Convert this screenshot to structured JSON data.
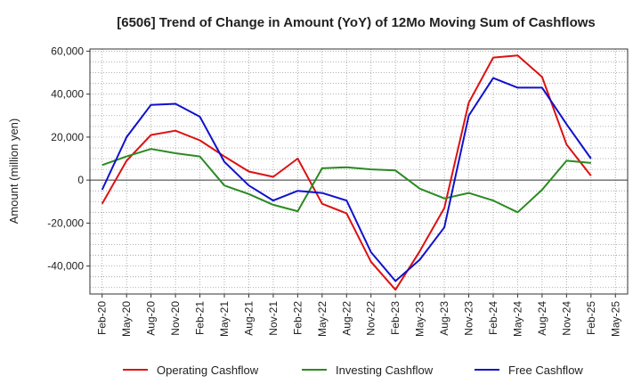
{
  "chart_data": {
    "type": "line",
    "title": "[6506]  Trend of Change in Amount (YoY) of 12Mo Moving Sum of Cashflows",
    "ylabel": "Amount (million yen)",
    "xlabel": "",
    "ylim": [
      -53000,
      61000
    ],
    "yticks": [
      60000,
      40000,
      20000,
      0,
      -20000,
      -40000
    ],
    "ytick_labels": [
      "60,000",
      "40,000",
      "20,000",
      "0",
      "-20,000",
      "-40,000"
    ],
    "categories": [
      "Feb-20",
      "May-20",
      "Aug-20",
      "Nov-20",
      "Feb-21",
      "May-21",
      "Aug-21",
      "Nov-21",
      "Feb-22",
      "May-22",
      "Aug-22",
      "Nov-22",
      "Feb-23",
      "May-23",
      "Aug-23",
      "Nov-23",
      "Feb-24",
      "May-24",
      "Aug-24",
      "Nov-24",
      "Feb-25",
      "May-25"
    ],
    "grid": true,
    "legend_position": "bottom",
    "series": [
      {
        "name": "Operating Cashflow",
        "color": "#dd1111",
        "values": [
          -11000,
          9000,
          21000,
          23000,
          18500,
          11000,
          4000,
          1500,
          10000,
          -11000,
          -15500,
          -38000,
          -51000,
          -33000,
          -13000,
          36000,
          57000,
          58000,
          48000,
          16500,
          2000,
          null
        ]
      },
      {
        "name": "Investing Cashflow",
        "color": "#2a8a22",
        "values": [
          7000,
          11000,
          14500,
          12500,
          11000,
          -2500,
          -6500,
          -11500,
          -14500,
          5500,
          6000,
          5000,
          4500,
          -4000,
          -8500,
          -6000,
          -9500,
          -15000,
          -4500,
          9000,
          8000,
          null
        ]
      },
      {
        "name": "Free Cashflow",
        "color": "#1111cc",
        "values": [
          -4500,
          20000,
          35000,
          35500,
          29500,
          8500,
          -2500,
          -9500,
          -5000,
          -6000,
          -9500,
          -33500,
          -47000,
          -37000,
          -22000,
          30000,
          47500,
          43000,
          43000,
          26000,
          10000,
          null
        ]
      }
    ]
  }
}
